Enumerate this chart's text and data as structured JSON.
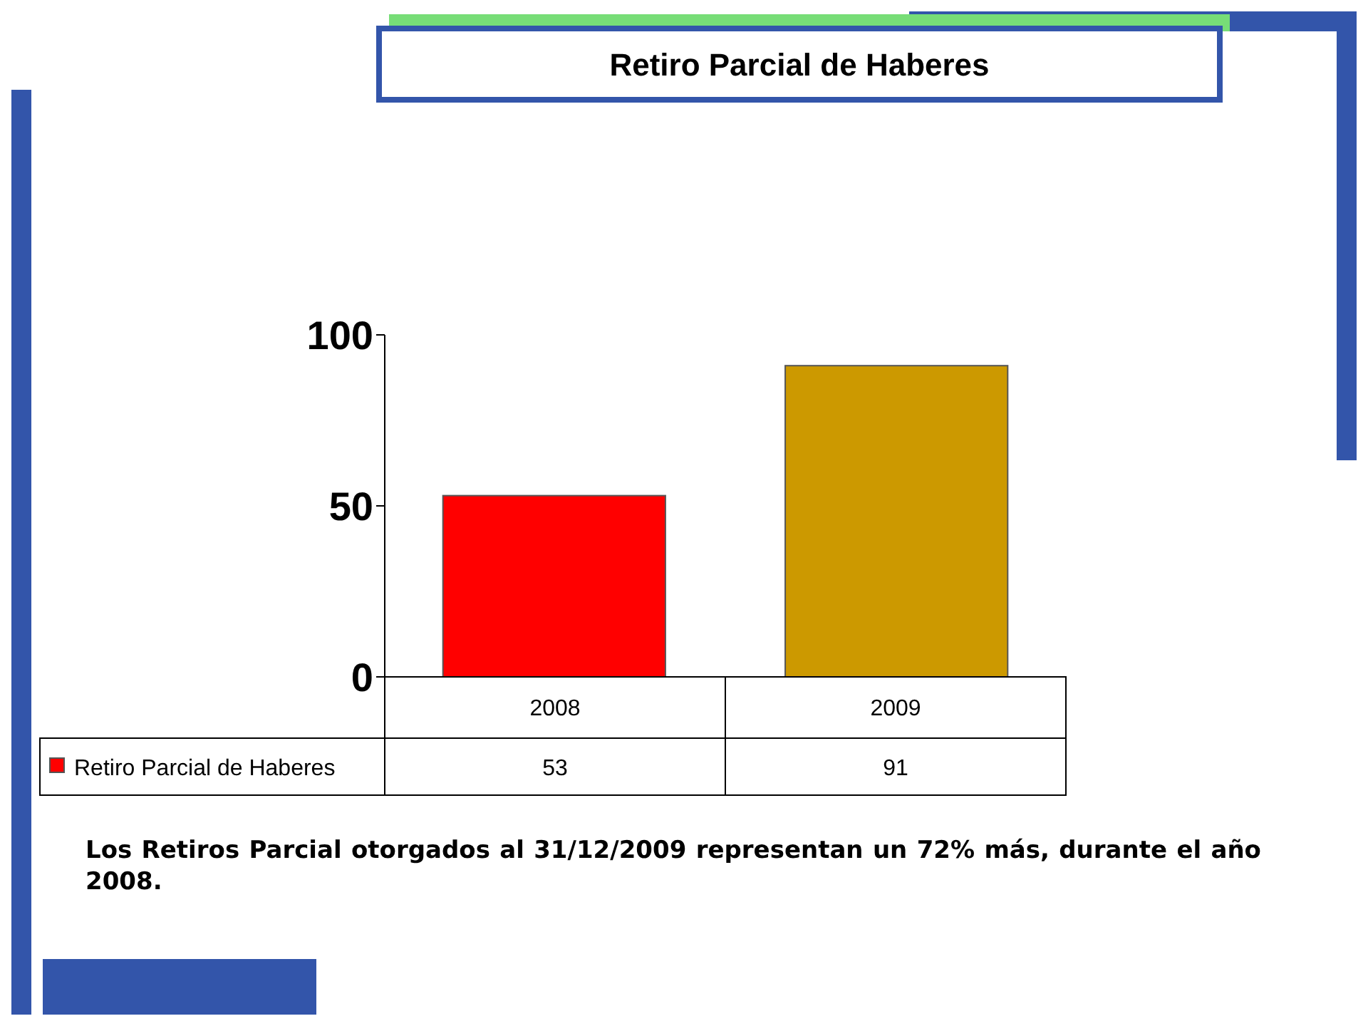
{
  "chart_data": {
    "type": "bar",
    "title": "Retiro Parcial de Haberes",
    "categories": [
      "2008",
      "2009"
    ],
    "series": [
      {
        "name": "Retiro Parcial de Haberes",
        "values": [
          53,
          91
        ],
        "colors": [
          "#ff0000",
          "#cc9900"
        ]
      }
    ],
    "ylim": [
      0,
      100
    ],
    "yticks": [
      0,
      50,
      100
    ],
    "data_labels": true,
    "annotations": [
      "Los Retiros Parcial otorgados al 31/12/2009 representan un 72% más,  durante el año 2008."
    ]
  }
}
